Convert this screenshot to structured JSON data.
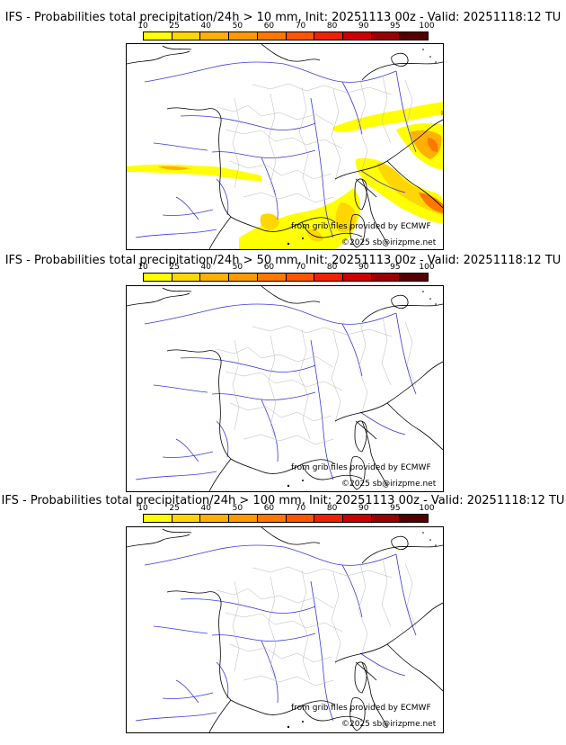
{
  "colorbar": {
    "levels": [
      "10",
      "25",
      "40",
      "50",
      "60",
      "70",
      "80",
      "90",
      "95",
      "100"
    ],
    "colors": [
      "#ffff00",
      "#ffd700",
      "#ffb000",
      "#ff9900",
      "#ff7700",
      "#ff5500",
      "#ee2200",
      "#cc0000",
      "#990000",
      "#550000"
    ]
  },
  "panels": [
    {
      "title": "IFS - Probabilities total precipitation/24h > 10 mm, Init: 20251113 00z - Valid: 20251118:12 TU",
      "credit_grib": "from grib files provided by ECMWF",
      "credit_site": "©2025 sb@irizpme.net"
    },
    {
      "title": "IFS - Probabilities total precipitation/24h > 50 mm, Init: 20251113 00z - Valid: 20251118:12 TU",
      "credit_grib": "from grib files provided by ECMWF",
      "credit_site": "©2025 sb@irizpme.net"
    },
    {
      "title": "IFS - Probabilities total precipitation/24h > 100 mm, Init: 20251113 00z - Valid: 20251118:12 TU",
      "credit_grib": "from grib files provided by ECMWF",
      "credit_site": "©2025 sb@irizpme.net"
    }
  ]
}
